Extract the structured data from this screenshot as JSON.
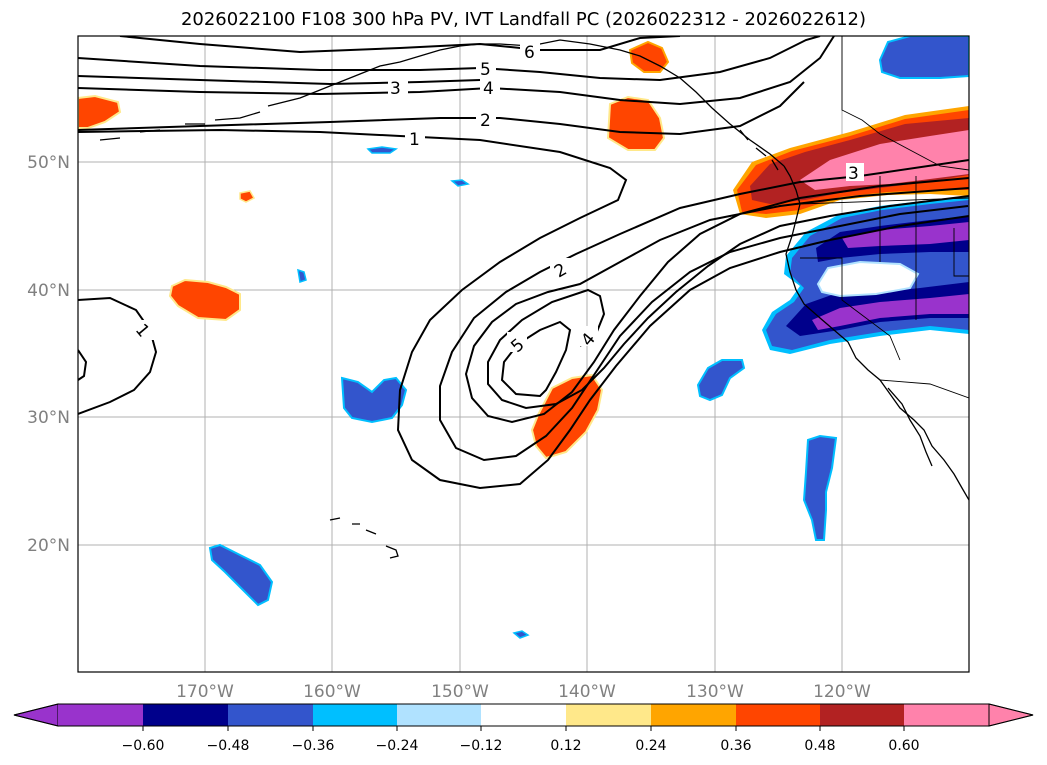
{
  "title": "2026022100 F108 300 hPa PV, IVT Landfall PC (2026022312 - 2026022612)",
  "map": {
    "lat_labels": [
      "50°N",
      "40°N",
      "30°N",
      "20°N"
    ],
    "lon_labels": [
      "170°W",
      "160°W",
      "150°W",
      "140°W",
      "130°W",
      "120°W"
    ],
    "pv_contour_labels": [
      "1",
      "2",
      "3",
      "4",
      "5",
      "6",
      "2",
      "4",
      "5",
      "3",
      "1"
    ],
    "gridlines": true
  },
  "colorbar": {
    "colors": [
      "#9933cc",
      "#00008b",
      "#3355cc",
      "#00bfff",
      "#b0e2ff",
      "#ffffff",
      "#ffe88a",
      "#ffa500",
      "#ff4500",
      "#b22222",
      "#ff82ab"
    ],
    "tick_labels": [
      "−0.60",
      "−0.48",
      "−0.36",
      "−0.24",
      "−0.12",
      "0.12",
      "0.24",
      "0.36",
      "0.48",
      "0.60"
    ],
    "extend": "both"
  }
}
